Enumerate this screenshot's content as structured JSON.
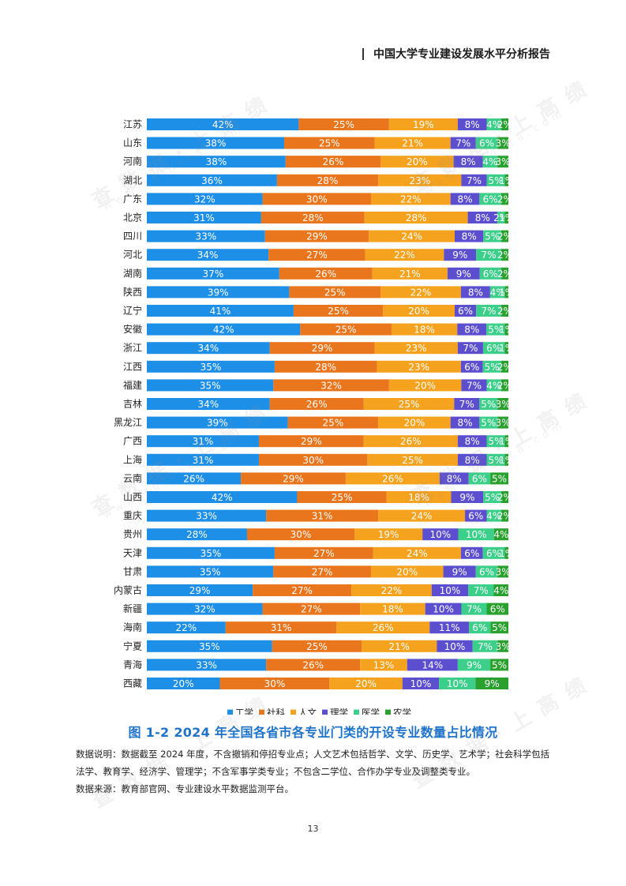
{
  "header": {
    "title": "中国大学专业建设发展水平分析报告"
  },
  "chart_data": {
    "type": "bar",
    "orientation": "horizontal",
    "stacked": "percent",
    "title": "图 1-2   2024 年全国各省市各专业门类的开设专业数量占比情况",
    "categories": [
      "江苏",
      "山东",
      "河南",
      "湖北",
      "广东",
      "北京",
      "四川",
      "河北",
      "湖南",
      "陕西",
      "辽宁",
      "安徽",
      "浙江",
      "江西",
      "福建",
      "吉林",
      "黑龙江",
      "广西",
      "上海",
      "云南",
      "山西",
      "重庆",
      "贵州",
      "天津",
      "甘肃",
      "内蒙古",
      "新疆",
      "海南",
      "宁夏",
      "青海",
      "西藏"
    ],
    "series": [
      {
        "name": "工学",
        "color": "#1e8fe6",
        "values": [
          42,
          38,
          38,
          36,
          32,
          31,
          33,
          34,
          37,
          39,
          41,
          42,
          34,
          35,
          35,
          34,
          39,
          31,
          31,
          26,
          42,
          33,
          28,
          35,
          35,
          29,
          32,
          22,
          35,
          33,
          20
        ]
      },
      {
        "name": "社科",
        "color": "#e9761c",
        "values": [
          25,
          25,
          26,
          28,
          30,
          28,
          29,
          27,
          26,
          25,
          25,
          25,
          29,
          28,
          32,
          26,
          25,
          29,
          30,
          29,
          25,
          31,
          30,
          27,
          27,
          27,
          27,
          31,
          25,
          26,
          30
        ]
      },
      {
        "name": "人文",
        "color": "#f5a21e",
        "values": [
          19,
          21,
          20,
          23,
          22,
          28,
          24,
          22,
          21,
          22,
          20,
          18,
          23,
          23,
          20,
          25,
          20,
          26,
          25,
          26,
          18,
          24,
          19,
          24,
          20,
          22,
          18,
          26,
          21,
          13,
          20
        ]
      },
      {
        "name": "理学",
        "color": "#5b4fd0",
        "values": [
          8,
          7,
          8,
          7,
          8,
          8,
          8,
          9,
          9,
          8,
          6,
          8,
          7,
          6,
          7,
          7,
          8,
          8,
          8,
          8,
          9,
          6,
          10,
          6,
          9,
          10,
          10,
          11,
          10,
          14,
          10
        ]
      },
      {
        "name": "医学",
        "color": "#3ccf8a",
        "values": [
          4,
          6,
          4,
          5,
          6,
          2,
          5,
          7,
          6,
          4,
          7,
          5,
          6,
          5,
          4,
          5,
          5,
          5,
          5,
          6,
          5,
          4,
          10,
          6,
          6,
          7,
          7,
          6,
          7,
          9,
          10
        ]
      },
      {
        "name": "农学",
        "color": "#2aa12e",
        "values": [
          2,
          3,
          3,
          1,
          2,
          1,
          2,
          2,
          2,
          1,
          2,
          1,
          1,
          2,
          2,
          3,
          3,
          1,
          1,
          5,
          2,
          2,
          4,
          1,
          3,
          4,
          6,
          5,
          3,
          5,
          9
        ]
      }
    ],
    "xlim": [
      0,
      100
    ],
    "legend": "bottom-center"
  },
  "notes": {
    "line1": "数据说明：数据截至 2024 年度，不含撤销和停招专业点；人文艺术包括哲学、文学、历史学、艺术学；社会科学包括法学、教育学、经济学、管理学；不含军事学类专业；不包含二学位、合作办学专业及调整类专业。",
    "line2": "数据来源：教育部官网、专业建设水平数据监测平台。"
  },
  "watermark": {
    "text": "查数据·上高绩",
    "subtext": "www.sgjdata.com"
  },
  "page_number": "13"
}
